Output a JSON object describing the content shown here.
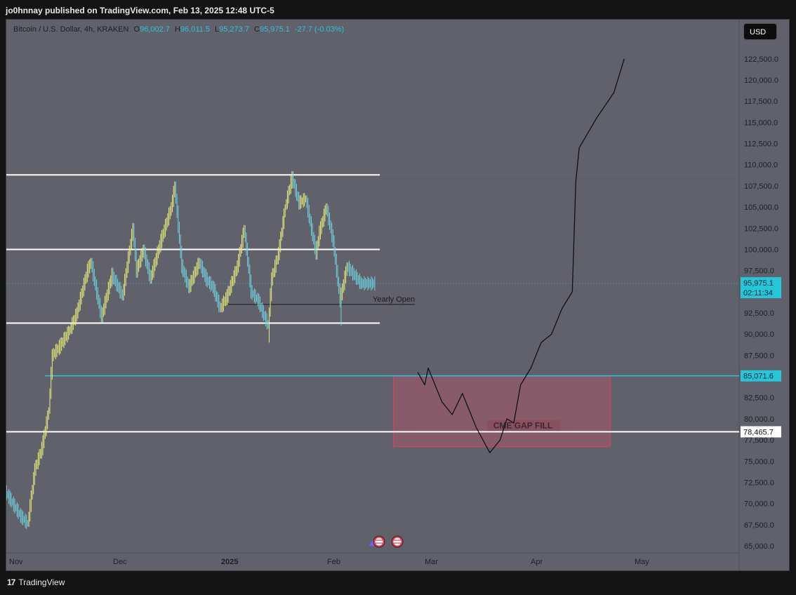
{
  "header": {
    "published": "jo0hnnay published on TradingView.com, Feb 13, 2025 12:48 UTC-5"
  },
  "legend": {
    "symbol": "Bitcoin / U.S. Dollar, 4h, KRAKEN",
    "o_key": "O",
    "o_val": "96,002.7",
    "h_key": "H",
    "h_val": "96,011.5",
    "l_key": "L",
    "l_val": "95,273.7",
    "c_key": "C",
    "c_val": "95,975.1",
    "change": "-27.7 (-0.03%)"
  },
  "currency_button": "USD",
  "footer": {
    "logo_mark": "17",
    "logo_text": "TradingView"
  },
  "colors": {
    "background": "#61616c",
    "candles_up": "#e8ee7a",
    "candles_down": "#6fd3df",
    "cyan": "#26c6da",
    "gap_box": "#d2506a"
  },
  "chart_data": {
    "type": "candlestick-line",
    "symbol": "Bitcoin / U.S. Dollar",
    "interval": "4h",
    "x_ticks": [
      "Nov",
      "Dec",
      "2025",
      "Feb",
      "Mar",
      "Apr",
      "May"
    ],
    "y_ticks": [
      "65,000.0",
      "67,500.0",
      "70,000.0",
      "72,500.0",
      "75,000.0",
      "77,500.0",
      "80,000.0",
      "82,500.0",
      "85,000.0",
      "87,500.0",
      "90,000.0",
      "92,500.0",
      "97,500.0",
      "100,000.0",
      "102,500.0",
      "105,000.0",
      "107,500.0",
      "110,000.0",
      "112,500.0",
      "115,000.0",
      "117,500.0",
      "120,000.0",
      "122,500.0"
    ],
    "ylim": [
      64000,
      126000
    ],
    "price_path": [
      [
        "2024-10-28",
        72500
      ],
      [
        "2024-10-31",
        70500
      ],
      [
        "2024-11-03",
        68500
      ],
      [
        "2024-11-05",
        67600
      ],
      [
        "2024-11-07",
        74000
      ],
      [
        "2024-11-09",
        76500
      ],
      [
        "2024-11-11",
        81000
      ],
      [
        "2024-11-12",
        87500
      ],
      [
        "2024-11-14",
        88500
      ],
      [
        "2024-11-17",
        90500
      ],
      [
        "2024-11-19",
        92500
      ],
      [
        "2024-11-22",
        97500
      ],
      [
        "2024-11-23",
        98500
      ],
      [
        "2024-11-26",
        92000
      ],
      [
        "2024-11-29",
        97000
      ],
      [
        "2024-12-02",
        94500
      ],
      [
        "2024-12-05",
        102500
      ],
      [
        "2024-12-06",
        97500
      ],
      [
        "2024-12-08",
        100000
      ],
      [
        "2024-12-10",
        96500
      ],
      [
        "2024-12-13",
        101000
      ],
      [
        "2024-12-16",
        105000
      ],
      [
        "2024-12-17",
        107500
      ],
      [
        "2024-12-19",
        98000
      ],
      [
        "2024-12-21",
        95500
      ],
      [
        "2024-12-24",
        98500
      ],
      [
        "2024-12-26",
        96500
      ],
      [
        "2024-12-28",
        95500
      ],
      [
        "2024-12-30",
        93000
      ],
      [
        "2025-01-01",
        94500
      ],
      [
        "2025-01-04",
        98000
      ],
      [
        "2025-01-06",
        102500
      ],
      [
        "2025-01-08",
        95000
      ],
      [
        "2025-01-10",
        94000
      ],
      [
        "2025-01-13",
        91000
      ],
      [
        "2025-01-14",
        96500
      ],
      [
        "2025-01-16",
        99500
      ],
      [
        "2025-01-18",
        105000
      ],
      [
        "2025-01-20",
        108500
      ],
      [
        "2025-01-22",
        105500
      ],
      [
        "2025-01-24",
        106000
      ],
      [
        "2025-01-27",
        99500
      ],
      [
        "2025-01-28",
        102000
      ],
      [
        "2025-01-30",
        105000
      ],
      [
        "2025-02-01",
        101000
      ],
      [
        "2025-02-03",
        94000
      ],
      [
        "2025-02-05",
        98000
      ],
      [
        "2025-02-09",
        96000
      ],
      [
        "2025-02-13",
        95975.1
      ]
    ],
    "projection_path": [
      [
        "2025-02-25",
        85500
      ],
      [
        "2025-02-27",
        84000
      ],
      [
        "2025-02-28",
        86000
      ],
      [
        "2025-03-04",
        82000
      ],
      [
        "2025-03-07",
        80500
      ],
      [
        "2025-03-10",
        83000
      ],
      [
        "2025-03-14",
        79000
      ],
      [
        "2025-03-18",
        76000
      ],
      [
        "2025-03-21",
        77500
      ],
      [
        "2025-03-23",
        80000
      ],
      [
        "2025-03-25",
        79500
      ],
      [
        "2025-03-27",
        84000
      ],
      [
        "2025-03-30",
        86000
      ],
      [
        "2025-04-02",
        89000
      ],
      [
        "2025-04-05",
        90000
      ],
      [
        "2025-04-08",
        93000
      ],
      [
        "2025-04-11",
        95000
      ],
      [
        "2025-04-12",
        108000
      ],
      [
        "2025-04-13",
        112000
      ],
      [
        "2025-04-18",
        115500
      ],
      [
        "2025-04-23",
        118500
      ],
      [
        "2025-04-26",
        122500
      ]
    ],
    "horizontal_lines": [
      {
        "price": 108800,
        "label": ""
      },
      {
        "price": 100000,
        "label": ""
      },
      {
        "price": 91300,
        "label": ""
      },
      {
        "price": 93500,
        "label": "Yearly Open"
      },
      {
        "price": 85071.6,
        "label": "85,071.6"
      },
      {
        "price": 78465.7,
        "label": "78,465.7"
      }
    ],
    "gap_box": {
      "label": "CME GAP FILL",
      "price_top": 85071.6,
      "price_bottom": 76700,
      "date_start": "2025-02-18",
      "date_end": "2025-04-22"
    },
    "last_price": {
      "value": "95,975.1",
      "countdown": "02:11:34"
    }
  }
}
